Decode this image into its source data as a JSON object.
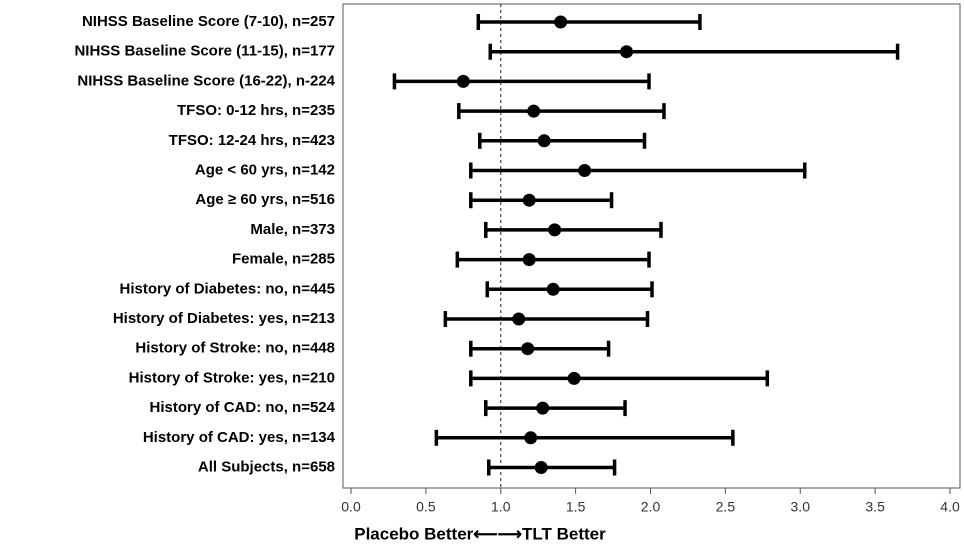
{
  "chart_data": {
    "type": "forest",
    "xlabel": "Placebo Better⟵⟶TLT Better",
    "categories": [
      "NIHSS Baseline Score (7-10), n=257",
      "NIHSS Baseline Score (11-15), n=177",
      "NIHSS Baseline Score (16-22), n-224",
      "TFSO: 0-12 hrs, n=235",
      "TFSO: 12-24 hrs, n=423",
      "Age < 60 yrs, n=142",
      "Age ≥ 60 yrs, n=516",
      "Male, n=373",
      "Female, n=285",
      "History of Diabetes: no, n=445",
      "History of Diabetes: yes, n=213",
      "History of Stroke: no, n=448",
      "History of Stroke: yes, n=210",
      "History of CAD: no, n=524",
      "History of CAD: yes, n=134",
      "All Subjects, n=658"
    ],
    "values": [
      1.4,
      1.84,
      0.75,
      1.22,
      1.29,
      1.56,
      1.19,
      1.36,
      1.19,
      1.35,
      1.12,
      1.18,
      1.49,
      1.28,
      1.2,
      1.27
    ],
    "lower": [
      0.85,
      0.93,
      0.29,
      0.72,
      0.86,
      0.8,
      0.8,
      0.9,
      0.71,
      0.91,
      0.63,
      0.8,
      0.8,
      0.9,
      0.57,
      0.92
    ],
    "upper": [
      2.33,
      3.65,
      1.99,
      2.09,
      1.96,
      3.03,
      1.74,
      2.07,
      1.99,
      2.01,
      1.98,
      1.72,
      2.78,
      1.83,
      2.55,
      1.76
    ],
    "color": "#000000",
    "reference_line": 1,
    "xlim": [
      0,
      4
    ],
    "xticks": [
      {
        "value": 0,
        "label": "0.0"
      },
      {
        "value": 0.5,
        "label": "0.5"
      },
      {
        "value": 1,
        "label": "1.0"
      },
      {
        "value": 1.5,
        "label": "1.5"
      },
      {
        "value": 2,
        "label": "2.0"
      },
      {
        "value": 2.5,
        "label": "2.5"
      },
      {
        "value": 3,
        "label": "3.0"
      },
      {
        "value": 3.5,
        "label": "3.5"
      },
      {
        "value": 4,
        "label": "4.0"
      }
    ]
  }
}
